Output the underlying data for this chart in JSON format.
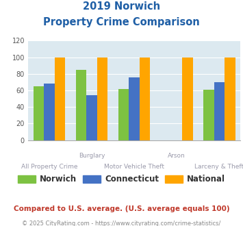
{
  "title_line1": "2019 Norwich",
  "title_line2": "Property Crime Comparison",
  "categories": [
    "All Property Crime",
    "Burglary",
    "Motor Vehicle Theft",
    "Arson",
    "Larceny & Theft"
  ],
  "x_labels_top": [
    "",
    "Burglary",
    "",
    "Arson",
    ""
  ],
  "x_labels_bottom": [
    "All Property Crime",
    "",
    "Motor Vehicle Theft",
    "",
    "Larceny & Theft"
  ],
  "norwich": [
    65,
    85,
    62,
    0,
    61
  ],
  "connecticut": [
    68,
    54,
    76,
    0,
    70
  ],
  "national": [
    100,
    100,
    100,
    100,
    100
  ],
  "colors": {
    "norwich": "#7DC242",
    "connecticut": "#4472C4",
    "national": "#FFA500"
  },
  "ylim": [
    0,
    120
  ],
  "yticks": [
    0,
    20,
    40,
    60,
    80,
    100,
    120
  ],
  "legend_labels": [
    "Norwich",
    "Connecticut",
    "National"
  ],
  "footnote1": "Compared to U.S. average. (U.S. average equals 100)",
  "footnote2": "© 2025 CityRating.com - https://www.cityrating.com/crime-statistics/",
  "title_color": "#1F5FA6",
  "footnote1_color": "#C0392B",
  "footnote2_color": "#888888",
  "xlabel_color": "#9999AA",
  "bg_color": "#DCE9F0",
  "fig_bg": "#FFFFFF"
}
